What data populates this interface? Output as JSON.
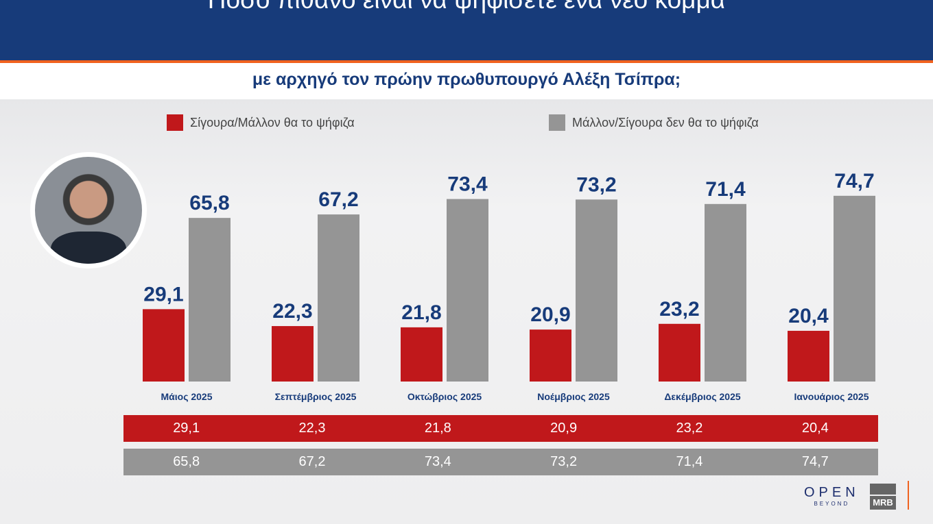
{
  "header": {
    "title": "Πόσο πιθανό είναι να ψηφίσετε ένα νέο κόμμα",
    "subtitle": "με αρχηγό τον πρώην πρωθυπουργό Αλέξη Τσίπρα;"
  },
  "colors": {
    "header": "#173b7a",
    "accent": "#f0621f",
    "red": "#c0181b",
    "gray": "#959595",
    "label": "#173b7a"
  },
  "chart_data": {
    "type": "bar",
    "categories": [
      "Μάιος 2025",
      "Σεπτέμβριος 2025",
      "Οκτώβριος 2025",
      "Νοέμβριος 2025",
      "Δεκέμβριος 2025",
      "Ιανουάριος 2025"
    ],
    "series": [
      {
        "name": "Σίγουρα/Μάλλον θα το ψήφιζα",
        "color": "#c0181b",
        "values": [
          29.1,
          22.3,
          21.8,
          20.9,
          23.2,
          20.4
        ],
        "labels": [
          "29,1",
          "22,3",
          "21,8",
          "20,9",
          "23,2",
          "20,4"
        ]
      },
      {
        "name": "Μάλλον/Σίγουρα δεν θα το ψήφιζα",
        "color": "#959595",
        "values": [
          65.8,
          67.2,
          73.4,
          73.2,
          71.4,
          74.7
        ],
        "labels": [
          "65,8",
          "67,2",
          "73,4",
          "73,2",
          "71,4",
          "74,7"
        ]
      }
    ],
    "legend": "top",
    "grid": false
  },
  "logos": {
    "open": "OPEN",
    "open_sub": "BEYOND",
    "mrb": "MRB"
  }
}
